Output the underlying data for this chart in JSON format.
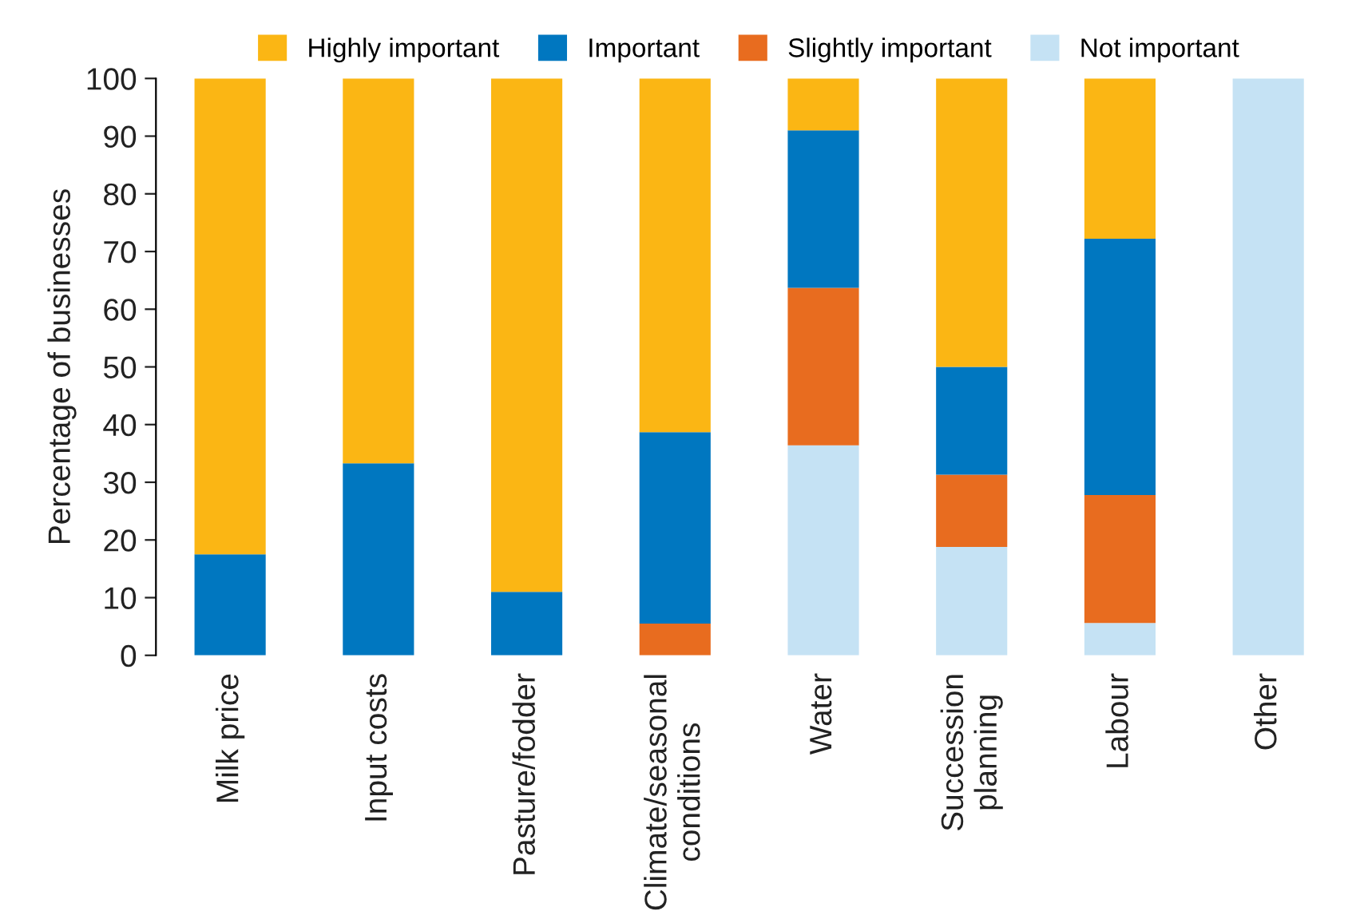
{
  "chart_data": {
    "type": "bar",
    "stacked": true,
    "ylabel": "Percentage of businesses",
    "categories": [
      "Milk price",
      "Input costs",
      "Pasture/fodder",
      "Climate/seasonal\nconditions",
      "Water",
      "Succession\nplanning",
      "Labour",
      "Other"
    ],
    "series": [
      {
        "name": "Not important",
        "color": "#c5e2f4",
        "values": [
          0,
          0,
          0,
          0,
          36.4,
          18.8,
          5.6,
          100
        ]
      },
      {
        "name": "Slightly important",
        "color": "#e86c1f",
        "values": [
          0,
          0,
          0,
          5.5,
          27.3,
          12.5,
          22.2,
          0
        ]
      },
      {
        "name": "Important",
        "color": "#0077c0",
        "values": [
          17.5,
          33.3,
          11,
          33.2,
          27.3,
          18.7,
          44.4,
          0
        ]
      },
      {
        "name": "Highly important",
        "color": "#fbb614",
        "values": [
          82.5,
          66.7,
          89,
          61.3,
          9.0,
          50,
          27.8,
          0
        ]
      }
    ],
    "ylim": [
      0,
      100
    ],
    "yticks": [
      0,
      10,
      20,
      30,
      40,
      50,
      60,
      70,
      80,
      90,
      100
    ],
    "grid": false,
    "legend": "top"
  }
}
